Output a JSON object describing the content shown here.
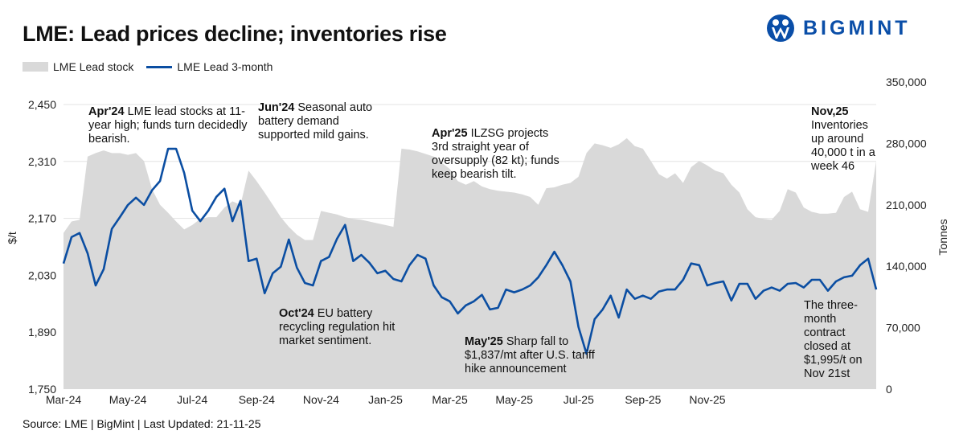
{
  "title": "LME: Lead prices decline; inventories rise",
  "logo": {
    "text": "BIGMINT",
    "color": "#0a4ea8"
  },
  "source": "Source: LME | BigMint | Last Updated: 21-11-25",
  "chart_data": {
    "type": "line+area",
    "title": "LME: Lead prices decline; inventories rise",
    "ylabel": "$/t",
    "y2label": "Tonnes",
    "ylim": [
      1750,
      2450
    ],
    "y2lim": [
      0,
      350000
    ],
    "yticks": [
      "1,750",
      "1,890",
      "2,030",
      "2,170",
      "2,310",
      "2,450"
    ],
    "y2ticks": [
      "0",
      "70,000",
      "140,000",
      "210,000",
      "280,000",
      "350,000"
    ],
    "xticks": [
      "Mar-24",
      "May-24",
      "Jul-24",
      "Sep-24",
      "Nov-24",
      "Jan-25",
      "Mar-25",
      "May-25",
      "Jul-25",
      "Sep-25",
      "Nov-25"
    ],
    "grid": true,
    "legend_position": "top-left",
    "colors": {
      "stock": "#d9d9d9",
      "price": "#0b4ea2"
    },
    "series": [
      {
        "name": "LME Lead stock",
        "type": "area",
        "axis": "right",
        "values": [
          178000,
          191000,
          193000,
          265000,
          269000,
          272000,
          269000,
          269000,
          267000,
          269000,
          260000,
          228000,
          210000,
          201000,
          191000,
          182000,
          187000,
          194000,
          196000,
          196000,
          207000,
          214000,
          210000,
          249000,
          237000,
          224000,
          210000,
          196000,
          185000,
          176000,
          170000,
          170000,
          203000,
          201000,
          199000,
          196000,
          194000,
          193000,
          191000,
          189000,
          187000,
          185000,
          274000,
          273000,
          271000,
          268000,
          265000,
          258000,
          251000,
          237000,
          233000,
          237000,
          231000,
          228000,
          226000,
          225000,
          224000,
          222000,
          219000,
          210000,
          229000,
          230000,
          233000,
          235000,
          242000,
          269000,
          280000,
          278000,
          275000,
          279000,
          286000,
          277000,
          274000,
          260000,
          245000,
          240000,
          246000,
          235000,
          253000,
          260000,
          255000,
          249000,
          246000,
          233000,
          224000,
          205000,
          196000,
          194000,
          193000,
          203000,
          228000,
          224000,
          207000,
          202000,
          200000,
          200000,
          201000,
          219000,
          225000,
          205000,
          202000,
          260000
        ]
      },
      {
        "name": "LME Lead 3-month",
        "type": "line",
        "axis": "left",
        "values": [
          2059,
          2124,
          2134,
          2084,
          2005,
          2045,
          2144,
          2173,
          2203,
          2221,
          2203,
          2239,
          2262,
          2341,
          2341,
          2282,
          2189,
          2163,
          2189,
          2223,
          2243,
          2163,
          2213,
          2065,
          2071,
          1986,
          2035,
          2051,
          2118,
          2049,
          2011,
          2005,
          2065,
          2075,
          2120,
          2154,
          2065,
          2080,
          2061,
          2035,
          2041,
          2021,
          2015,
          2055,
          2080,
          2071,
          2005,
          1976,
          1966,
          1936,
          1956,
          1966,
          1982,
          1946,
          1950,
          1995,
          1988,
          1995,
          2005,
          2025,
          2055,
          2088,
          2055,
          2015,
          1903,
          1837,
          1922,
          1946,
          1980,
          1926,
          1995,
          1972,
          1980,
          1972,
          1990,
          1995,
          1995,
          2019,
          2059,
          2055,
          2005,
          2011,
          2015,
          1968,
          2009,
          2009,
          1972,
          1992,
          2000,
          1992,
          2009,
          2011,
          2000,
          2019,
          2019,
          1992,
          2015,
          2025,
          2029,
          2055,
          2071,
          1995
        ]
      }
    ],
    "annotations": [
      {
        "bold": "Apr'24",
        "text": " LME lead stocks at 11-year high; funds turn decidedly bearish."
      },
      {
        "bold": "Jun'24",
        "text": " Seasonal auto battery demand supported mild gains."
      },
      {
        "bold": "Apr'25",
        "text": " ILZSG projects 3rd straight year of oversupply (82 kt); funds keep bearish tilt."
      },
      {
        "bold": "Nov,25",
        "text": " Inventories up around 40,000 t in a week 46"
      },
      {
        "bold": "Oct'24",
        "text": " EU battery recycling regulation hit market sentiment."
      },
      {
        "bold": "May'25",
        "text": " Sharp fall to $1,837/mt after U.S. tariff hike announcement"
      },
      {
        "bold": "",
        "text": "The three-month contract closed at $1,995/t on Nov 21st"
      }
    ]
  }
}
